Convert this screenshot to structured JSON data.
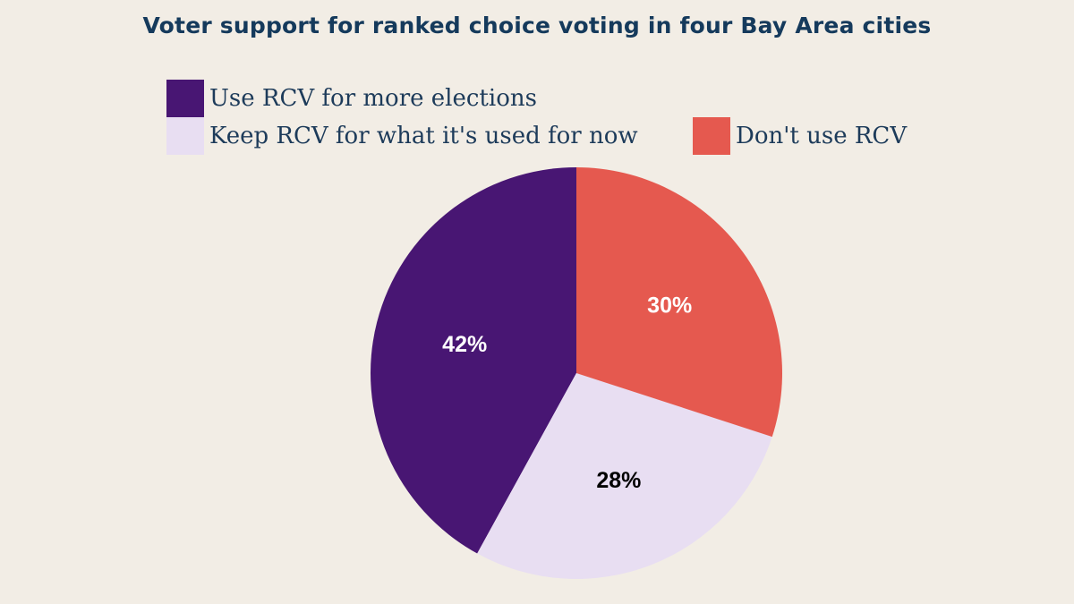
{
  "chart_data": {
    "type": "pie",
    "title": "Voter support for ranked choice voting in four Bay Area cities",
    "categories": [
      "Use RCV for more elections",
      "Keep RCV for what it's used for now",
      "Don't use RCV"
    ],
    "values": [
      42,
      28,
      30
    ],
    "value_labels": [
      "42%",
      "28%",
      "30%"
    ],
    "colors": [
      "#481673",
      "#e8def2",
      "#e5594f"
    ],
    "label_colors": [
      "#ffffff",
      "#000000",
      "#ffffff"
    ],
    "legend_position": "top",
    "start_angle": "12 o'clock, counter-clockwise order from first series"
  }
}
